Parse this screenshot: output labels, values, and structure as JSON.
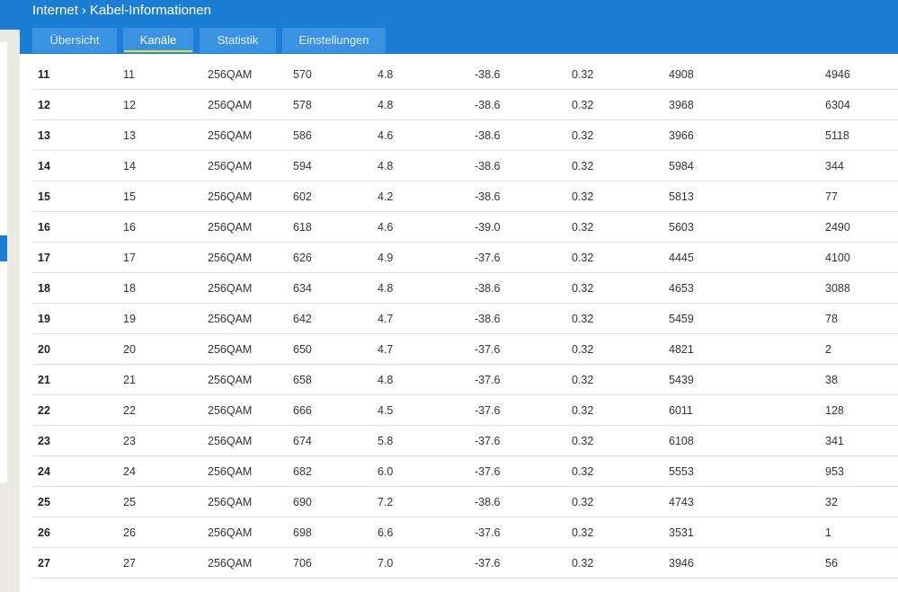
{
  "header": {
    "breadcrumb": [
      "Internet",
      "Kabel-Informationen"
    ]
  },
  "tabs": [
    {
      "label": "Übersicht",
      "active": false
    },
    {
      "label": "Kanäle",
      "active": true
    },
    {
      "label": "Statistik",
      "active": false
    },
    {
      "label": "Einstellungen",
      "active": false
    }
  ],
  "table": {
    "rows": [
      [
        "11",
        "11",
        "256QAM",
        "570",
        "4.8",
        "-38.6",
        "0.32",
        "4908",
        "4946"
      ],
      [
        "12",
        "12",
        "256QAM",
        "578",
        "4.8",
        "-38.6",
        "0.32",
        "3968",
        "6304"
      ],
      [
        "13",
        "13",
        "256QAM",
        "586",
        "4.6",
        "-38.6",
        "0.32",
        "3966",
        "5118"
      ],
      [
        "14",
        "14",
        "256QAM",
        "594",
        "4.8",
        "-38.6",
        "0.32",
        "5984",
        "344"
      ],
      [
        "15",
        "15",
        "256QAM",
        "602",
        "4.2",
        "-38.6",
        "0.32",
        "5813",
        "77"
      ],
      [
        "16",
        "16",
        "256QAM",
        "618",
        "4.6",
        "-39.0",
        "0.32",
        "5603",
        "2490"
      ],
      [
        "17",
        "17",
        "256QAM",
        "626",
        "4.9",
        "-37.6",
        "0.32",
        "4445",
        "4100"
      ],
      [
        "18",
        "18",
        "256QAM",
        "634",
        "4.8",
        "-38.6",
        "0.32",
        "4653",
        "3088"
      ],
      [
        "19",
        "19",
        "256QAM",
        "642",
        "4.7",
        "-38.6",
        "0.32",
        "5459",
        "78"
      ],
      [
        "20",
        "20",
        "256QAM",
        "650",
        "4.7",
        "-37.6",
        "0.32",
        "4821",
        "2"
      ],
      [
        "21",
        "21",
        "256QAM",
        "658",
        "4.8",
        "-37.6",
        "0.32",
        "5439",
        "38"
      ],
      [
        "22",
        "22",
        "256QAM",
        "666",
        "4.5",
        "-37.6",
        "0.32",
        "6011",
        "128"
      ],
      [
        "23",
        "23",
        "256QAM",
        "674",
        "5.8",
        "-37.6",
        "0.32",
        "6108",
        "341"
      ],
      [
        "24",
        "24",
        "256QAM",
        "682",
        "6.0",
        "-37.6",
        "0.32",
        "5553",
        "953"
      ],
      [
        "25",
        "25",
        "256QAM",
        "690",
        "7.2",
        "-38.6",
        "0.32",
        "4743",
        "32"
      ],
      [
        "26",
        "26",
        "256QAM",
        "698",
        "6.6",
        "-37.6",
        "0.32",
        "3531",
        "1"
      ],
      [
        "27",
        "27",
        "256QAM",
        "706",
        "7.0",
        "-37.6",
        "0.32",
        "3946",
        "56"
      ]
    ]
  }
}
